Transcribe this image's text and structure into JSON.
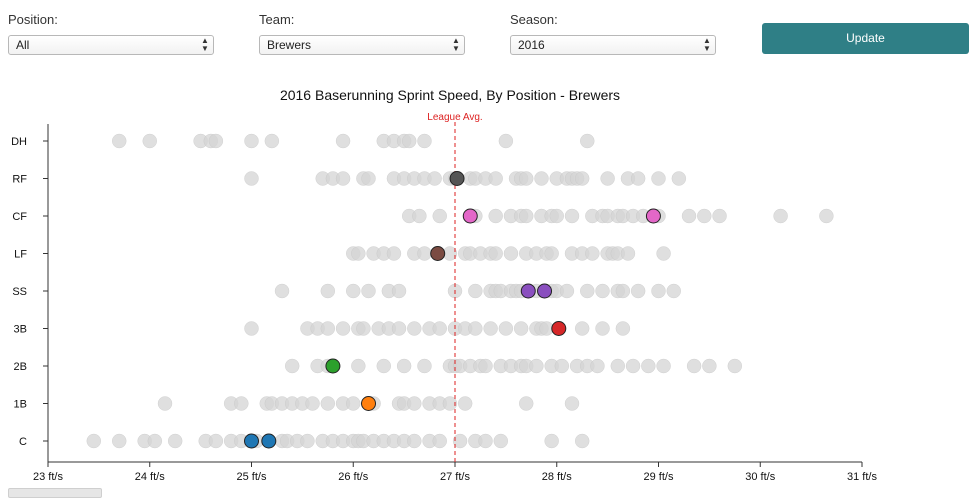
{
  "controls": {
    "position": {
      "label": "Position:",
      "value": "All"
    },
    "team": {
      "label": "Team:",
      "value": "Brewers"
    },
    "season": {
      "label": "Season:",
      "value": "2016"
    },
    "update_label": "Update"
  },
  "chart_data": {
    "type": "scatter",
    "title": "2016 Baserunning Sprint Speed, By Position - Brewers",
    "xlabel": "",
    "ylabel": "",
    "xlim": [
      23,
      31
    ],
    "x_ticks": [
      23,
      24,
      25,
      26,
      27,
      28,
      29,
      30,
      31
    ],
    "x_tick_labels": [
      "23 ft/s",
      "24 ft/s",
      "25 ft/s",
      "26 ft/s",
      "27 ft/s",
      "28 ft/s",
      "29 ft/s",
      "30 ft/s",
      "31 ft/s"
    ],
    "categories": [
      "DH",
      "RF",
      "CF",
      "LF",
      "SS",
      "3B",
      "2B",
      "1B",
      "C"
    ],
    "reference_line": {
      "x": 27.0,
      "label": "League Avg.",
      "color": "#dd2222"
    },
    "colors": {
      "league": "#d4d4d4",
      "league_stroke": "#c2c2c2",
      "highlight_stroke": "#222222",
      "axis": "#333333"
    },
    "series": [
      {
        "values": [
          {
            "position": "DH",
            "x": [
              23.7,
              24.0,
              24.5,
              24.6,
              24.65,
              25.0,
              25.2,
              25.9,
              26.3,
              26.4,
              26.5,
              26.55,
              26.7,
              27.5,
              28.3
            ]
          },
          {
            "position": "RF",
            "x": [
              25.0,
              25.7,
              25.8,
              25.9,
              26.1,
              26.15,
              26.4,
              26.5,
              26.6,
              26.7,
              26.8,
              26.95,
              27.0,
              27.15,
              27.2,
              27.3,
              27.4,
              27.6,
              27.65,
              27.7,
              27.85,
              28.0,
              28.1,
              28.15,
              28.2,
              28.25,
              28.5,
              28.7,
              28.8,
              29.0,
              29.2
            ]
          },
          {
            "position": "CF",
            "x": [
              26.55,
              26.65,
              26.85,
              27.2,
              27.4,
              27.55,
              27.65,
              27.7,
              27.85,
              27.95,
              28.0,
              28.15,
              28.35,
              28.45,
              28.5,
              28.6,
              28.65,
              28.75,
              28.85,
              28.95,
              29.0,
              29.3,
              29.45,
              29.6,
              30.2,
              30.65
            ]
          },
          {
            "position": "LF",
            "x": [
              26.0,
              26.05,
              26.2,
              26.3,
              26.4,
              26.6,
              26.7,
              26.95,
              27.1,
              27.15,
              27.25,
              27.35,
              27.4,
              27.55,
              27.7,
              27.8,
              27.9,
              27.95,
              28.15,
              28.25,
              28.35,
              28.5,
              28.55,
              28.6,
              28.7,
              29.05
            ]
          },
          {
            "position": "SS",
            "x": [
              25.3,
              25.75,
              26.0,
              26.15,
              26.35,
              26.45,
              27.0,
              27.2,
              27.35,
              27.4,
              27.45,
              27.55,
              27.6,
              27.65,
              27.8,
              27.95,
              28.0,
              28.1,
              28.3,
              28.45,
              28.6,
              28.65,
              28.8,
              29.0,
              29.15
            ]
          },
          {
            "position": "3B",
            "x": [
              25.0,
              25.55,
              25.65,
              25.75,
              25.9,
              26.05,
              26.1,
              26.25,
              26.35,
              26.45,
              26.6,
              26.75,
              26.85,
              27.0,
              27.1,
              27.2,
              27.35,
              27.5,
              27.65,
              27.8,
              27.85,
              27.9,
              28.25,
              28.45,
              28.65
            ]
          },
          {
            "position": "2B",
            "x": [
              25.4,
              25.65,
              25.75,
              26.05,
              26.3,
              26.5,
              26.7,
              26.95,
              27.0,
              27.05,
              27.15,
              27.25,
              27.3,
              27.45,
              27.55,
              27.65,
              27.7,
              27.8,
              27.95,
              28.05,
              28.2,
              28.3,
              28.4,
              28.6,
              28.75,
              28.9,
              29.05,
              29.35,
              29.5,
              29.75
            ]
          },
          {
            "position": "1B",
            "x": [
              24.15,
              24.8,
              24.9,
              25.15,
              25.2,
              25.3,
              25.4,
              25.5,
              25.6,
              25.75,
              25.9,
              26.0,
              26.2,
              26.45,
              26.5,
              26.6,
              26.75,
              26.85,
              26.95,
              27.1,
              27.7,
              28.15
            ]
          },
          {
            "position": "C",
            "x": [
              23.45,
              23.7,
              23.95,
              24.05,
              24.25,
              24.55,
              24.65,
              24.8,
              24.9,
              25.05,
              25.3,
              25.35,
              25.45,
              25.55,
              25.7,
              25.8,
              25.9,
              26.0,
              26.05,
              26.1,
              26.2,
              26.3,
              26.4,
              26.5,
              26.6,
              26.75,
              26.85,
              27.05,
              27.2,
              27.3,
              27.45,
              27.95,
              28.25
            ]
          }
        ]
      },
      {
        "values": [
          {
            "position": "RF",
            "x": 27.02,
            "color": "#555555"
          },
          {
            "position": "CF",
            "x": 27.15,
            "color": "#e367c8"
          },
          {
            "position": "CF",
            "x": 28.95,
            "color": "#e367c8"
          },
          {
            "position": "LF",
            "x": 26.83,
            "color": "#7b4b42"
          },
          {
            "position": "SS",
            "x": 27.72,
            "color": "#8a4fbf"
          },
          {
            "position": "SS",
            "x": 27.88,
            "color": "#8a4fbf"
          },
          {
            "position": "3B",
            "x": 28.02,
            "color": "#d62728"
          },
          {
            "position": "2B",
            "x": 25.8,
            "color": "#2ca02c"
          },
          {
            "position": "1B",
            "x": 26.15,
            "color": "#ff7f0e"
          },
          {
            "position": "C",
            "x": 25.0,
            "color": "#1f77b4"
          },
          {
            "position": "C",
            "x": 25.17,
            "color": "#1f77b4"
          }
        ]
      }
    ]
  }
}
